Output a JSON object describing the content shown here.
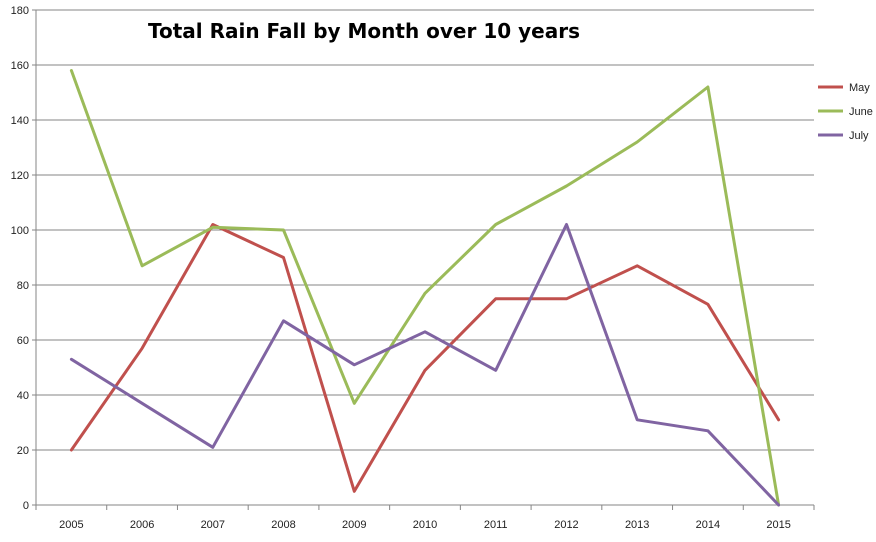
{
  "chart_data": {
    "type": "line",
    "title": "Total Rain Fall by Month over 10 years",
    "xlabel": "",
    "ylabel": "",
    "categories": [
      "2005",
      "2006",
      "2007",
      "2008",
      "2009",
      "2010",
      "2011",
      "2012",
      "2013",
      "2014",
      "2015"
    ],
    "ylim": [
      0,
      180
    ],
    "yticks": [
      0,
      20,
      40,
      60,
      80,
      100,
      120,
      140,
      160,
      180
    ],
    "grid": true,
    "legend_position": "right",
    "series": [
      {
        "name": "May",
        "color": "#c0504d",
        "values": [
          20,
          57,
          102,
          90,
          5,
          49,
          75,
          75,
          87,
          73,
          31
        ]
      },
      {
        "name": "June",
        "color": "#9bbb59",
        "values": [
          158,
          87,
          101,
          100,
          37,
          77,
          102,
          116,
          132,
          152,
          0
        ]
      },
      {
        "name": "July",
        "color": "#8064a2",
        "values": [
          53,
          37,
          21,
          67,
          51,
          63,
          49,
          102,
          31,
          27,
          0
        ]
      }
    ]
  }
}
